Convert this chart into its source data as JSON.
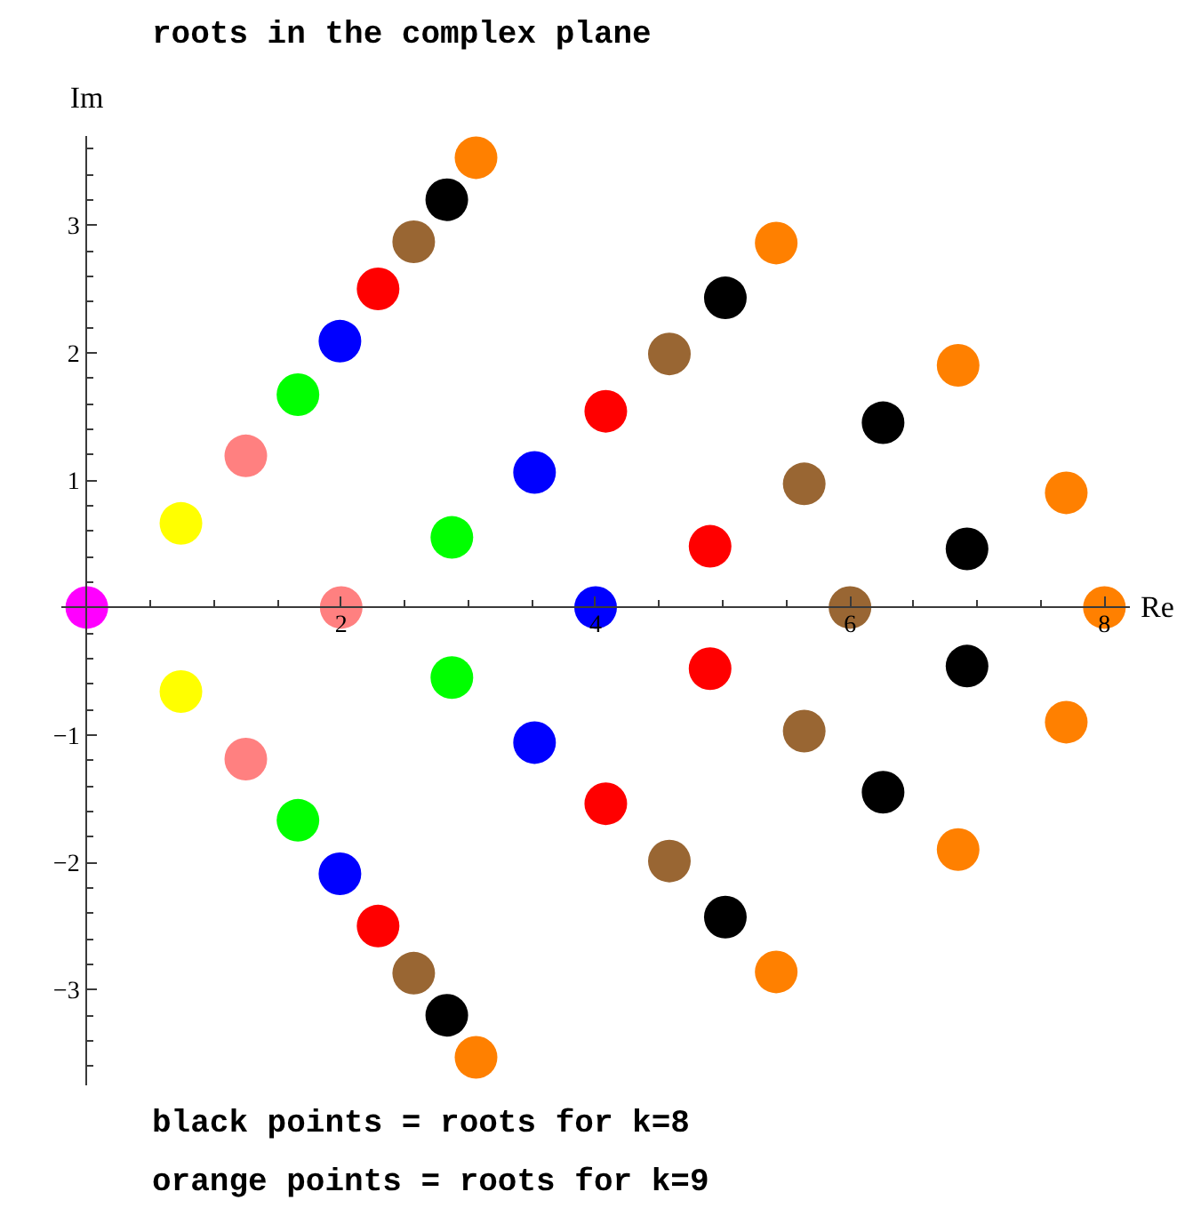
{
  "chart_data": {
    "type": "scatter",
    "title": "roots in the complex plane",
    "xlabel": "Re",
    "ylabel": "Im",
    "annotations": [
      "black  points = roots for k=8",
      "orange points = roots for k=9"
    ],
    "xlim": [
      -0.2,
      8.2
    ],
    "ylim": [
      -3.75,
      3.7
    ],
    "xticks": [
      {
        "value": 0.5,
        "label": null
      },
      {
        "value": 1,
        "label": null
      },
      {
        "value": 1.5,
        "label": null
      },
      2,
      {
        "value": 2.5,
        "label": null
      },
      {
        "value": 3,
        "label": null
      },
      {
        "value": 3.5,
        "label": null
      },
      4,
      {
        "value": 4.5,
        "label": null
      },
      {
        "value": 5,
        "label": null
      },
      {
        "value": 5.5,
        "label": null
      },
      6,
      {
        "value": 6.5,
        "label": null
      },
      {
        "value": 7,
        "label": null
      },
      {
        "value": 7.5,
        "label": null
      },
      8
    ],
    "yticks": [
      {
        "value": -3.6,
        "label": null
      },
      {
        "value": -3.4,
        "label": null
      },
      {
        "value": -3.2,
        "label": null
      },
      {
        "value": -3,
        "label": "−3"
      },
      {
        "value": -2.8,
        "label": null
      },
      {
        "value": -2.6,
        "label": null
      },
      {
        "value": -2.4,
        "label": null
      },
      {
        "value": -2.2,
        "label": null
      },
      {
        "value": -2,
        "label": "−2"
      },
      {
        "value": -1.8,
        "label": null
      },
      {
        "value": -1.6,
        "label": null
      },
      {
        "value": -1.4,
        "label": null
      },
      {
        "value": -1.2,
        "label": null
      },
      {
        "value": -1,
        "label": "−1"
      },
      {
        "value": -0.8,
        "label": null
      },
      {
        "value": -0.6,
        "label": null
      },
      {
        "value": -0.4,
        "label": null
      },
      {
        "value": -0.2,
        "label": null
      },
      {
        "value": 0.2,
        "label": null
      },
      {
        "value": 0.4,
        "label": null
      },
      {
        "value": 0.6,
        "label": null
      },
      {
        "value": 0.8,
        "label": null
      },
      1,
      {
        "value": 1.2,
        "label": null
      },
      {
        "value": 1.4,
        "label": null
      },
      {
        "value": 1.6,
        "label": null
      },
      {
        "value": 1.8,
        "label": null
      },
      2,
      {
        "value": 2.2,
        "label": null
      },
      {
        "value": 2.4,
        "label": null
      },
      {
        "value": 2.6,
        "label": null
      },
      {
        "value": 2.8,
        "label": null
      },
      3,
      {
        "value": 3.2,
        "label": null
      },
      {
        "value": 3.4,
        "label": null
      },
      {
        "value": 3.6,
        "label": null
      }
    ],
    "marker": "circle",
    "series": [
      {
        "color": "#ff00ff",
        "x": [
          0
        ],
        "values": [
          0
        ]
      },
      {
        "color": "#ffff00",
        "x": [
          0.74,
          0.74
        ],
        "values": [
          0.66,
          -0.66
        ]
      },
      {
        "color": "#ff8080",
        "x": [
          1.25,
          2.0,
          1.25
        ],
        "values": [
          1.19,
          0,
          -1.19
        ]
      },
      {
        "color": "#00ff00",
        "x": [
          1.66,
          2.87,
          2.87,
          1.66
        ],
        "values": [
          1.67,
          0.55,
          -0.55,
          -1.67
        ]
      },
      {
        "color": "#0000ff",
        "x": [
          1.99,
          3.52,
          4.0,
          3.52,
          1.99
        ],
        "values": [
          2.09,
          1.06,
          0,
          -1.06,
          -2.09
        ]
      },
      {
        "color": "#ff0000",
        "x": [
          2.29,
          4.08,
          4.9,
          4.9,
          4.08,
          2.29
        ],
        "values": [
          2.5,
          1.54,
          0.48,
          -0.48,
          -1.54,
          -2.5
        ]
      },
      {
        "color": "#996633",
        "x": [
          2.57,
          4.58,
          5.64,
          6.0,
          5.64,
          4.58,
          2.57
        ],
        "values": [
          2.87,
          1.99,
          0.97,
          0,
          -0.97,
          -1.99,
          -2.87
        ]
      },
      {
        "color": "#000000",
        "x": [
          2.83,
          5.02,
          6.26,
          6.92,
          6.92,
          6.26,
          5.02,
          2.83
        ],
        "values": [
          3.2,
          2.43,
          1.45,
          0.46,
          -0.46,
          -1.45,
          -2.43,
          -3.2
        ]
      },
      {
        "color": "#ff8000",
        "x": [
          3.06,
          5.42,
          6.85,
          7.7,
          8.0,
          7.7,
          6.85,
          5.42,
          3.06
        ],
        "values": [
          3.53,
          2.86,
          1.9,
          0.9,
          0,
          -0.9,
          -1.9,
          -2.86,
          -3.53
        ]
      }
    ]
  }
}
